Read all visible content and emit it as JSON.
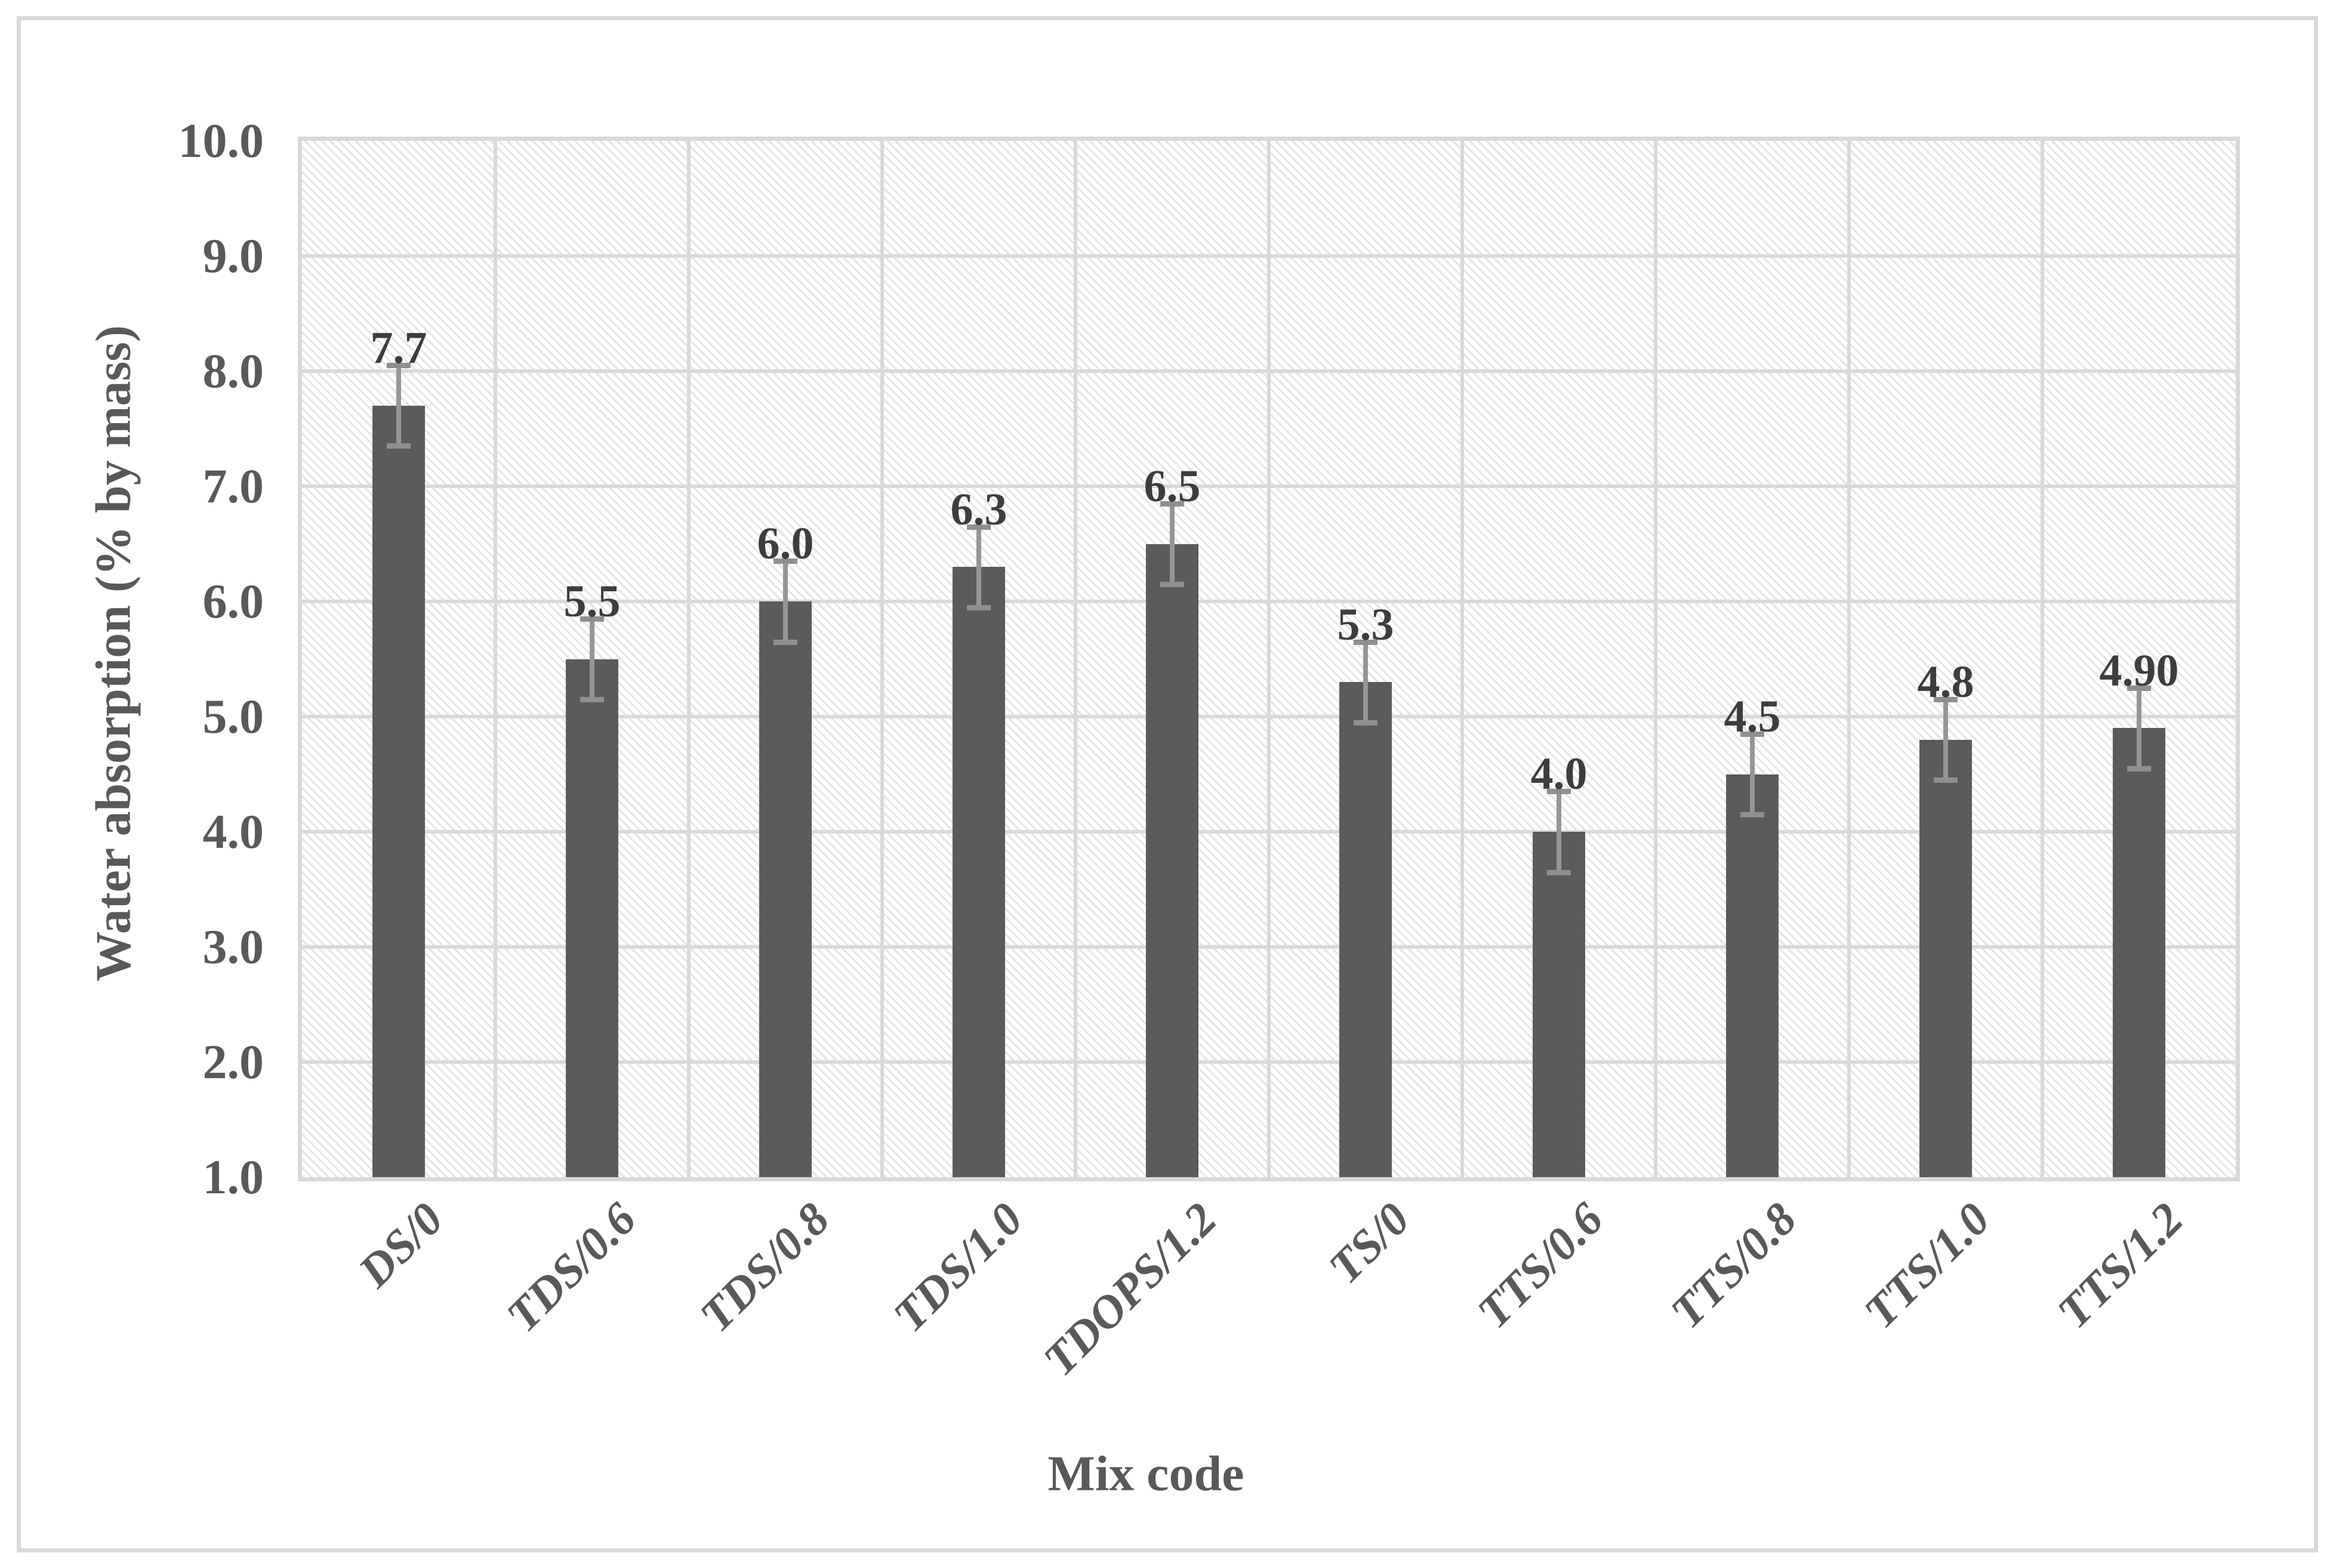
{
  "figure": {
    "background_color": "#ffffff",
    "border_color": "#d9d9d9"
  },
  "chart_data": {
    "type": "bar",
    "title": "",
    "xlabel": "Mix code",
    "ylabel": "Water absorption (% by mass)",
    "categories": [
      "DS/0",
      "TDS/0.6",
      "TDS/0.8",
      "TDS/1.0",
      "TDOPS/1.2",
      "TS/0",
      "TTS/0.6",
      "TTS/0.8",
      "TTS/1.0",
      "TTS/1.2"
    ],
    "values": [
      7.7,
      5.5,
      6.0,
      6.3,
      6.5,
      5.3,
      4.0,
      4.5,
      4.8,
      4.9
    ],
    "value_labels": [
      "7.7",
      "5.5",
      "6.0",
      "6.3",
      "6.5",
      "5.3",
      "4.0",
      "4.5",
      "4.8",
      "4.90"
    ],
    "error_bars": {
      "plus": 0.35,
      "minus": 0.35
    },
    "ylim": [
      1.0,
      10.0
    ],
    "ytick_step": 1.0,
    "ytick_labels": [
      "10.0",
      "9.0",
      "8.0",
      "7.0",
      "6.0",
      "5.0",
      "4.0",
      "3.0",
      "2.0",
      "1.0"
    ],
    "grid": "major horizontal and vertical gridlines on",
    "legend": "none",
    "plot_background": "light diagonal hatch pattern",
    "colors": {
      "bar_fill": "#5b5b5b",
      "error_bar": "#949494",
      "gridline": "#d9d9d9",
      "hatch_line": "#e4e4e4",
      "tick_label": "#595959",
      "axis_title": "#595959",
      "data_label": "#3d3d3d"
    }
  }
}
